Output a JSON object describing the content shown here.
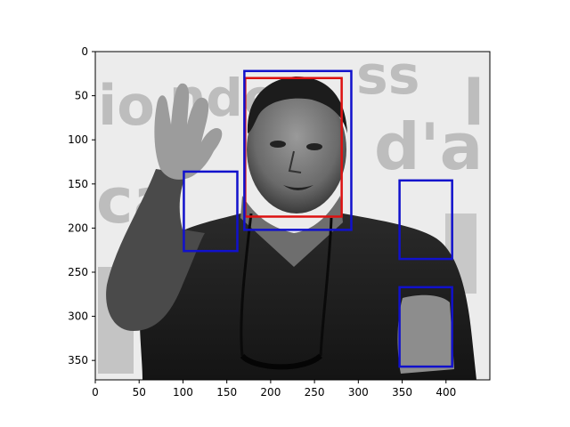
{
  "axes": {
    "x": {
      "min": 0,
      "max": 450,
      "ticks": [
        "0",
        "50",
        "100",
        "150",
        "200",
        "250",
        "300",
        "350",
        "400"
      ]
    },
    "y": {
      "min": 0,
      "max": 372,
      "inverted": true,
      "ticks": [
        "0",
        "50",
        "100",
        "150",
        "200",
        "250",
        "300",
        "350"
      ]
    },
    "grid": false
  },
  "image": {
    "subject": "grayscale photo of a man in a dark polo shirt raising his right hand, with large pale lettering in the background",
    "background_text": [
      "io",
      "nde",
      "ca",
      "d'a",
      "ss",
      "l"
    ]
  },
  "boxes": [
    {
      "label": "red-box",
      "color": "#dd1111",
      "x0": 171,
      "y0": 30,
      "x1": 281,
      "y1": 187
    },
    {
      "label": "blue-box",
      "color": "#1111cc",
      "x0": 170,
      "y0": 22,
      "x1": 292,
      "y1": 202
    },
    {
      "label": "blue-box",
      "color": "#1111cc",
      "x0": 101,
      "y0": 136,
      "x1": 162,
      "y1": 226
    },
    {
      "label": "blue-box",
      "color": "#1111cc",
      "x0": 347,
      "y0": 146,
      "x1": 407,
      "y1": 235
    },
    {
      "label": "blue-box",
      "color": "#1111cc",
      "x0": 347,
      "y0": 267,
      "x1": 407,
      "y1": 357
    }
  ]
}
